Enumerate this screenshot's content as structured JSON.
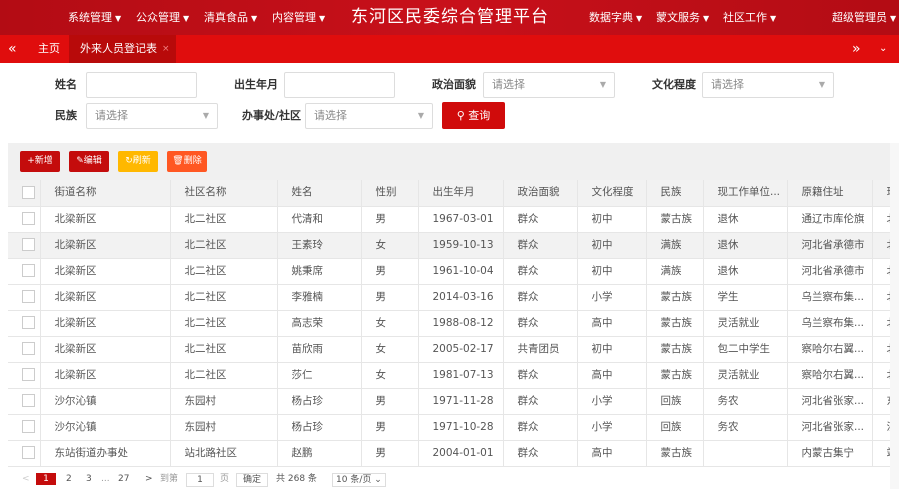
{
  "header": {
    "title": "东河区民委综合管理平台",
    "menus_left": [
      "系统管理",
      "公众管理",
      "清真食品",
      "内容管理"
    ],
    "menus_right": [
      "数据字典",
      "蒙文服务",
      "社区工作"
    ],
    "user": "超级管理员"
  },
  "tabs": {
    "home": "主页",
    "active": "外来人员登记表",
    "close": "×"
  },
  "search": {
    "name_label": "姓名",
    "birth_label": "出生年月",
    "political_label": "政治面貌",
    "edu_label": "文化程度",
    "ethnic_label": "民族",
    "office_label": "办事处/社区",
    "placeholder": "请选择",
    "query": "查询"
  },
  "toolbar": {
    "add": "+新增",
    "edit": "编辑",
    "refresh": "刷新",
    "delete": "删除",
    "colors": {
      "add": "#c40c0c",
      "edit": "#c40c0c",
      "refresh": "#ffb800",
      "delete": "#ff5722"
    }
  },
  "table": {
    "columns": [
      "街道名称",
      "社区名称",
      "姓名",
      "性别",
      "出生年月",
      "政治面貌",
      "文化程度",
      "民族",
      "现工作单位...",
      "原籍住址",
      "现"
    ],
    "rows": [
      [
        "北梁新区",
        "北二社区",
        "代清和",
        "男",
        "1967-03-01",
        "群众",
        "初中",
        "蒙古族",
        "退休",
        "通辽市库伦旗",
        "北"
      ],
      [
        "北梁新区",
        "北二社区",
        "王素玲",
        "女",
        "1959-10-13",
        "群众",
        "初中",
        "满族",
        "退休",
        "河北省承德市",
        "北"
      ],
      [
        "北梁新区",
        "北二社区",
        "姚秉席",
        "男",
        "1961-10-04",
        "群众",
        "初中",
        "满族",
        "退休",
        "河北省承德市",
        "北"
      ],
      [
        "北梁新区",
        "北二社区",
        "李雅楠",
        "男",
        "2014-03-16",
        "群众",
        "小学",
        "蒙古族",
        "学生",
        "乌兰察布集...",
        "北"
      ],
      [
        "北梁新区",
        "北二社区",
        "高志荣",
        "女",
        "1988-08-12",
        "群众",
        "高中",
        "蒙古族",
        "灵活就业",
        "乌兰察布集...",
        "北"
      ],
      [
        "北梁新区",
        "北二社区",
        "苗欣雨",
        "女",
        "2005-02-17",
        "共青团员",
        "初中",
        "蒙古族",
        "包二中学生",
        "察哈尔右翼...",
        "北"
      ],
      [
        "北梁新区",
        "北二社区",
        "莎仁",
        "女",
        "1981-07-13",
        "群众",
        "高中",
        "蒙古族",
        "灵活就业",
        "察哈尔右翼...",
        "北"
      ],
      [
        "沙尔沁镇",
        "东园村",
        "杨占珍",
        "男",
        "1971-11-28",
        "群众",
        "小学",
        "回族",
        "务农",
        "河北省张家...",
        "东"
      ],
      [
        "沙尔沁镇",
        "东园村",
        "杨占珍",
        "男",
        "1971-10-28",
        "群众",
        "小学",
        "回族",
        "务农",
        "河北省张家...",
        "沙"
      ],
      [
        "东站街道办事处",
        "站北路社区",
        "赵鹏",
        "男",
        "2004-01-01",
        "群众",
        "高中",
        "蒙古族",
        "",
        "内蒙古集宁",
        "站"
      ]
    ]
  },
  "pager": {
    "prev": "<",
    "pages": [
      "1",
      "2",
      "3",
      "...",
      "27"
    ],
    "current": "1",
    "next": ">",
    "goto": "到第",
    "page_input": "1",
    "page_unit": "页",
    "confirm": "确定",
    "total": "共 268 条",
    "per_page": "10 条/页"
  }
}
